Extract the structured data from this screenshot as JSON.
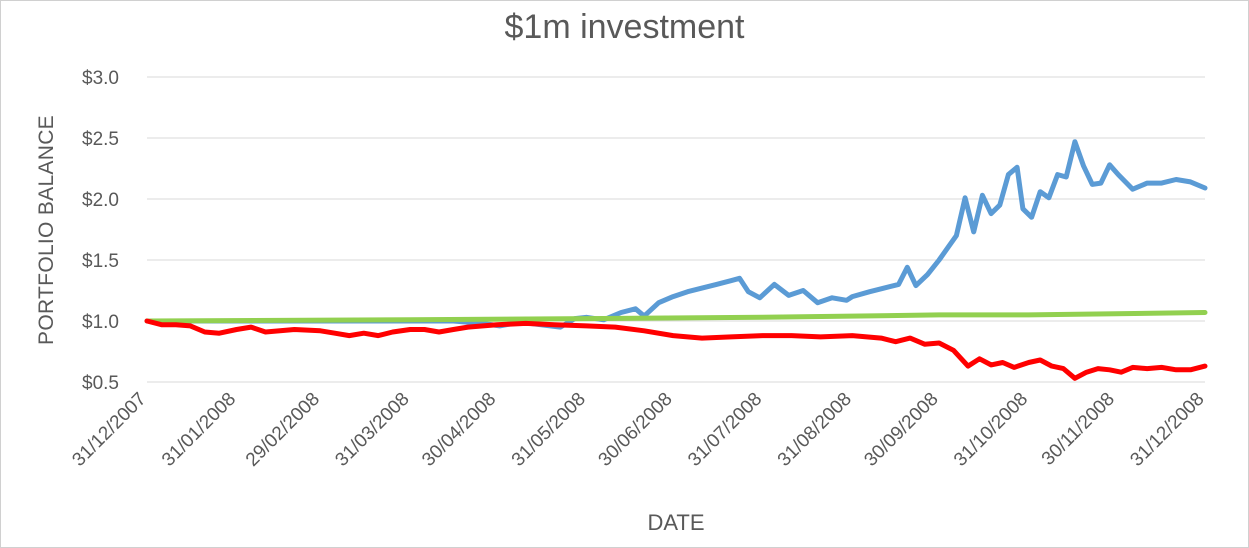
{
  "chart_data": {
    "type": "line",
    "title": "$1m investment",
    "xlabel": "DATE",
    "ylabel": "PORTFOLIO BALANCE",
    "ylim": [
      0.5,
      3.0
    ],
    "yticks": [
      0.5,
      1.0,
      1.5,
      2.0,
      2.5,
      3.0
    ],
    "ytick_labels": [
      "$0.5",
      "$1.0",
      "$1.5",
      "$2.0",
      "$2.5",
      "$3.0"
    ],
    "xlim": [
      "31/12/2007",
      "31/12/2008"
    ],
    "xtick_labels": [
      "31/12/2007",
      "31/01/2008",
      "29/02/2008",
      "31/03/2008",
      "30/04/2008",
      "31/05/2008",
      "30/06/2008",
      "31/07/2008",
      "31/08/2008",
      "30/09/2008",
      "31/10/2008",
      "30/11/2008",
      "31/12/2008"
    ],
    "grid": "horizontal",
    "legend": "none",
    "series": [
      {
        "color": "#5b9bd5",
        "points": [
          [
            "31/12/2007",
            1.0
          ],
          [
            "31/01/2008",
            1.0
          ],
          [
            "29/02/2008",
            1.0
          ],
          [
            "31/03/2008",
            1.0
          ],
          [
            "15/04/2008",
            1.0
          ],
          [
            "25/04/2008",
            0.98
          ],
          [
            "01/05/2008",
            0.96
          ],
          [
            "08/05/2008",
            0.99
          ],
          [
            "15/05/2008",
            0.97
          ],
          [
            "22/05/2008",
            0.95
          ],
          [
            "27/05/2008",
            1.02
          ],
          [
            "31/05/2008",
            1.03
          ],
          [
            "06/06/2008",
            1.01
          ],
          [
            "12/06/2008",
            1.07
          ],
          [
            "17/06/2008",
            1.1
          ],
          [
            "20/06/2008",
            1.04
          ],
          [
            "25/06/2008",
            1.15
          ],
          [
            "30/06/2008",
            1.2
          ],
          [
            "05/07/2008",
            1.24
          ],
          [
            "10/07/2008",
            1.27
          ],
          [
            "15/07/2008",
            1.3
          ],
          [
            "20/07/2008",
            1.33
          ],
          [
            "23/07/2008",
            1.35
          ],
          [
            "26/07/2008",
            1.24
          ],
          [
            "30/07/2008",
            1.19
          ],
          [
            "04/08/2008",
            1.3
          ],
          [
            "09/08/2008",
            1.21
          ],
          [
            "14/08/2008",
            1.25
          ],
          [
            "19/08/2008",
            1.15
          ],
          [
            "24/08/2008",
            1.19
          ],
          [
            "29/08/2008",
            1.17
          ],
          [
            "31/08/2008",
            1.2
          ],
          [
            "06/09/2008",
            1.24
          ],
          [
            "11/09/2008",
            1.27
          ],
          [
            "16/09/2008",
            1.3
          ],
          [
            "19/09/2008",
            1.44
          ],
          [
            "22/09/2008",
            1.29
          ],
          [
            "26/09/2008",
            1.38
          ],
          [
            "30/09/2008",
            1.5
          ],
          [
            "03/10/2008",
            1.6
          ],
          [
            "06/10/2008",
            1.7
          ],
          [
            "09/10/2008",
            2.01
          ],
          [
            "12/10/2008",
            1.73
          ],
          [
            "15/10/2008",
            2.03
          ],
          [
            "18/10/2008",
            1.88
          ],
          [
            "21/10/2008",
            1.95
          ],
          [
            "24/10/2008",
            2.2
          ],
          [
            "27/10/2008",
            2.26
          ],
          [
            "29/10/2008",
            1.92
          ],
          [
            "01/11/2008",
            1.85
          ],
          [
            "04/11/2008",
            2.06
          ],
          [
            "07/11/2008",
            2.01
          ],
          [
            "10/11/2008",
            2.2
          ],
          [
            "13/11/2008",
            2.18
          ],
          [
            "16/11/2008",
            2.47
          ],
          [
            "19/11/2008",
            2.27
          ],
          [
            "22/11/2008",
            2.12
          ],
          [
            "25/11/2008",
            2.13
          ],
          [
            "28/11/2008",
            2.28
          ],
          [
            "01/12/2008",
            2.2
          ],
          [
            "06/12/2008",
            2.08
          ],
          [
            "11/12/2008",
            2.13
          ],
          [
            "16/12/2008",
            2.13
          ],
          [
            "21/12/2008",
            2.16
          ],
          [
            "26/12/2008",
            2.14
          ],
          [
            "31/12/2008",
            2.09
          ]
        ]
      },
      {
        "color": "#92d050",
        "points": [
          [
            "31/12/2007",
            1.0
          ],
          [
            "31/03/2008",
            1.01
          ],
          [
            "31/05/2008",
            1.02
          ],
          [
            "31/07/2008",
            1.03
          ],
          [
            "30/09/2008",
            1.05
          ],
          [
            "31/10/2008",
            1.05
          ],
          [
            "30/11/2008",
            1.06
          ],
          [
            "31/12/2008",
            1.07
          ]
        ]
      },
      {
        "color": "#ff0000",
        "points": [
          [
            "31/12/2007",
            1.0
          ],
          [
            "05/01/2008",
            0.97
          ],
          [
            "10/01/2008",
            0.97
          ],
          [
            "15/01/2008",
            0.96
          ],
          [
            "20/01/2008",
            0.91
          ],
          [
            "25/01/2008",
            0.9
          ],
          [
            "31/01/2008",
            0.93
          ],
          [
            "05/02/2008",
            0.95
          ],
          [
            "10/02/2008",
            0.91
          ],
          [
            "15/02/2008",
            0.92
          ],
          [
            "20/02/2008",
            0.93
          ],
          [
            "29/02/2008",
            0.92
          ],
          [
            "05/03/2008",
            0.9
          ],
          [
            "10/03/2008",
            0.88
          ],
          [
            "15/03/2008",
            0.9
          ],
          [
            "20/03/2008",
            0.88
          ],
          [
            "25/03/2008",
            0.91
          ],
          [
            "31/03/2008",
            0.93
          ],
          [
            "05/04/2008",
            0.93
          ],
          [
            "10/04/2008",
            0.91
          ],
          [
            "15/04/2008",
            0.93
          ],
          [
            "20/04/2008",
            0.95
          ],
          [
            "30/04/2008",
            0.97
          ],
          [
            "10/05/2008",
            0.98
          ],
          [
            "20/05/2008",
            0.97
          ],
          [
            "31/05/2008",
            0.96
          ],
          [
            "10/06/2008",
            0.95
          ],
          [
            "20/06/2008",
            0.92
          ],
          [
            "30/06/2008",
            0.88
          ],
          [
            "10/07/2008",
            0.86
          ],
          [
            "20/07/2008",
            0.87
          ],
          [
            "31/07/2008",
            0.88
          ],
          [
            "10/08/2008",
            0.88
          ],
          [
            "20/08/2008",
            0.87
          ],
          [
            "31/08/2008",
            0.88
          ],
          [
            "10/09/2008",
            0.86
          ],
          [
            "15/09/2008",
            0.83
          ],
          [
            "20/09/2008",
            0.86
          ],
          [
            "25/09/2008",
            0.81
          ],
          [
            "30/09/2008",
            0.82
          ],
          [
            "05/10/2008",
            0.76
          ],
          [
            "10/10/2008",
            0.63
          ],
          [
            "14/10/2008",
            0.69
          ],
          [
            "18/10/2008",
            0.64
          ],
          [
            "22/10/2008",
            0.66
          ],
          [
            "26/10/2008",
            0.62
          ],
          [
            "31/10/2008",
            0.66
          ],
          [
            "04/11/2008",
            0.68
          ],
          [
            "08/11/2008",
            0.63
          ],
          [
            "12/11/2008",
            0.61
          ],
          [
            "16/11/2008",
            0.53
          ],
          [
            "20/11/2008",
            0.58
          ],
          [
            "24/11/2008",
            0.61
          ],
          [
            "28/11/2008",
            0.6
          ],
          [
            "02/12/2008",
            0.58
          ],
          [
            "06/12/2008",
            0.62
          ],
          [
            "11/12/2008",
            0.61
          ],
          [
            "16/12/2008",
            0.62
          ],
          [
            "21/12/2008",
            0.6
          ],
          [
            "26/12/2008",
            0.6
          ],
          [
            "31/12/2008",
            0.63
          ]
        ]
      }
    ]
  }
}
